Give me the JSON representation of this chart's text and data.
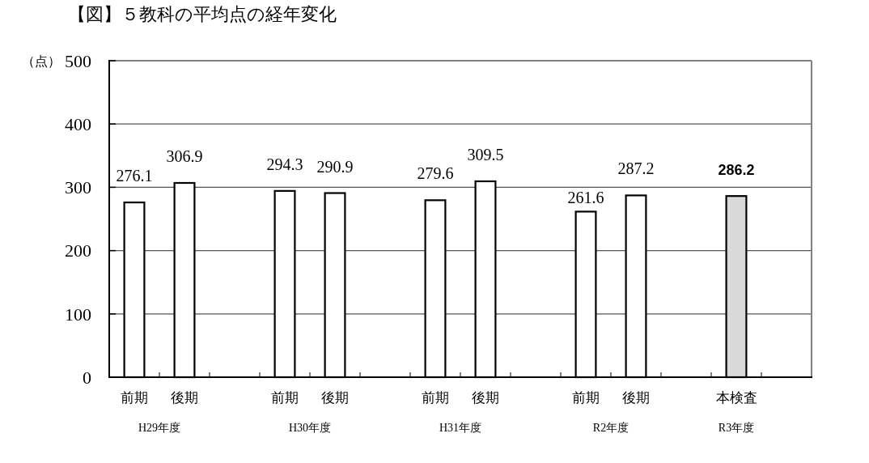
{
  "chart_data": {
    "type": "bar",
    "title": "【図】５教科の平均点の経年変化",
    "ylabel": "（点）",
    "categories": [
      "前期",
      "後期",
      null,
      "前期",
      "後期",
      null,
      "前期",
      "後期",
      null,
      "前期",
      "後期",
      null,
      "本検査",
      null
    ],
    "values": [
      276.1,
      306.9,
      null,
      294.3,
      290.9,
      null,
      279.6,
      309.5,
      null,
      261.6,
      287.2,
      null,
      286.2,
      null
    ],
    "colors": [
      "#ffffff",
      "#ffffff",
      null,
      "#ffffff",
      "#ffffff",
      null,
      "#ffffff",
      "#ffffff",
      null,
      "#ffffff",
      "#ffffff",
      null,
      "#d9d9d9",
      null
    ],
    "ylim": [
      0,
      500
    ],
    "yticks": [
      0,
      100,
      200,
      300,
      400,
      500
    ],
    "grid": "y",
    "data_labels": true,
    "annotations": [
      "H29年度",
      "H30年度",
      "H31年度",
      "R2年度",
      "R3年度"
    ]
  }
}
